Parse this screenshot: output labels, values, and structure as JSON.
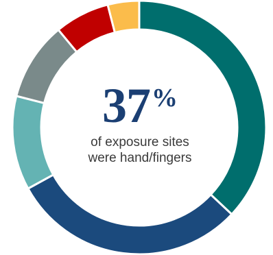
{
  "chart_data": {
    "type": "pie",
    "subtype": "donut",
    "slices": [
      {
        "value": 37,
        "color": "#006e6d"
      },
      {
        "value": 30,
        "color": "#1b4a7d"
      },
      {
        "value": 12,
        "color": "#64b3b3"
      },
      {
        "value": 10,
        "color": "#7a8a8a"
      },
      {
        "value": 7,
        "color": "#c00000"
      },
      {
        "value": 4,
        "color": "#fbbc4b"
      }
    ],
    "center": {
      "number": "37",
      "unit": "%",
      "caption_line1": "of exposure sites",
      "caption_line2": "were hand/fingers"
    }
  }
}
